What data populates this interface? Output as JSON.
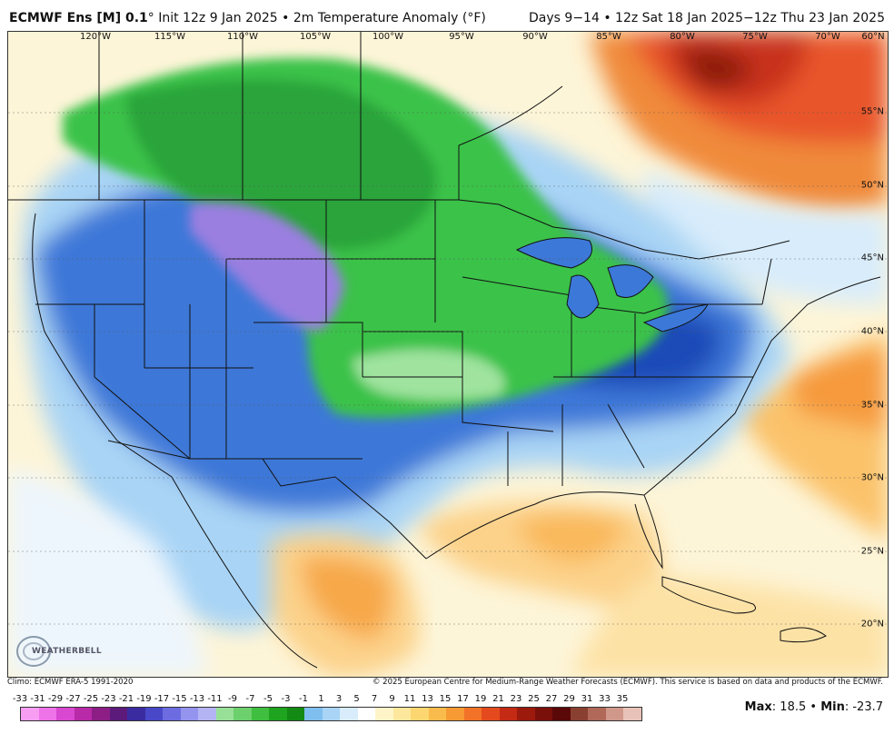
{
  "header": {
    "model": "ECMWF Ens [M] 0.1",
    "degree": "°",
    "init": "Init 12z 9 Jan 2025",
    "sep": "•",
    "variable": "2m Temperature Anomaly (°F)",
    "valid": "Days 9−14 • 12z Sat 18 Jan 2025−12z Thu 23 Jan 2025"
  },
  "map": {
    "lon_labels": [
      "120°W",
      "115°W",
      "110°W",
      "105°W",
      "100°W",
      "95°W",
      "90°W",
      "85°W",
      "80°W",
      "75°W",
      "70°W",
      "60°N"
    ],
    "lat_labels": [
      "55°N",
      "50°N",
      "45°N",
      "40°N",
      "35°N",
      "30°N",
      "25°N",
      "20°N"
    ],
    "colors": {
      "ocean": "#fdf5d8",
      "mexico_warm": "#fcd28a",
      "canada_east_warm": "#e8552a",
      "hot_core": "#a81c10",
      "cold_blue": "#3c78d8",
      "cold_deep": "#1e4bb8",
      "green_anom": "#3ac24a",
      "purple_anom": "#9a7fe0",
      "light_blue": "#a9d4f5",
      "pale": "#eef6fd"
    }
  },
  "footer": {
    "climo": "Climo: ECMWF ERA-5 1991-2020",
    "copyright": "© 2025 European Centre for Medium-Range Weather Forecasts (ECMWF). This service is based on data and products of the ECMWF."
  },
  "colorbar": {
    "labels": [
      "-33",
      "-31",
      "-29",
      "-27",
      "-25",
      "-23",
      "-21",
      "-19",
      "-17",
      "-15",
      "-13",
      "-11",
      "-9",
      "-7",
      "-5",
      "-3",
      "-1",
      "1",
      "3",
      "5",
      "7",
      "9",
      "11",
      "13",
      "15",
      "17",
      "19",
      "21",
      "23",
      "25",
      "27",
      "29",
      "31",
      "33",
      "35"
    ],
    "colors": [
      "#f79ef2",
      "#ee72e8",
      "#d948d0",
      "#b82aa8",
      "#8c1e86",
      "#5c1a7a",
      "#3a2ca0",
      "#4848c8",
      "#6c6ce0",
      "#9494ee",
      "#b4b4f4",
      "#98e098",
      "#6cd06c",
      "#3fbe3f",
      "#1ea41e",
      "#138a13",
      "#7fbfef",
      "#a9d4f5",
      "#d8ecfb",
      "#ffffff",
      "#fff4c8",
      "#fde79c",
      "#fcd670",
      "#f9bc4c",
      "#f79a34",
      "#f27228",
      "#e44a1e",
      "#c42a14",
      "#9c1a0c",
      "#7a100a",
      "#5a0808",
      "#8a4030",
      "#b06858",
      "#d0988a",
      "#e8c2b8"
    ],
    "max_label": "Max",
    "max_value": "18.5",
    "min_label": "Min",
    "min_value": "-23.7"
  },
  "logo": {
    "text": "WEATHERBELL"
  }
}
